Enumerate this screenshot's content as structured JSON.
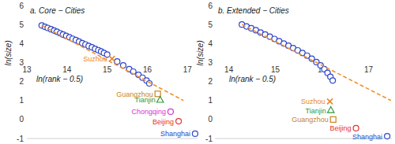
{
  "chart_data": [
    {
      "type": "scatter",
      "title": "a. Core − Cities",
      "x_label": "ln(rank − 0.5)",
      "y_label": "ln(size)",
      "xlim": [
        13,
        17.25
      ],
      "ylim": [
        -1,
        6
      ],
      "xticks": [
        13,
        14,
        15,
        16,
        17
      ],
      "yticks": [
        -1,
        0,
        1,
        2,
        3,
        4,
        5,
        6
      ],
      "series": [
        {
          "color": "#2f45c8",
          "marker": "circle",
          "x": [
            13.37,
            13.45,
            13.52,
            13.6,
            13.68,
            13.75,
            13.83,
            13.9,
            13.98,
            14.06,
            14.14,
            14.22,
            14.3,
            14.38,
            14.46,
            14.54,
            14.62,
            14.7,
            14.78,
            14.85,
            14.92,
            15.0,
            15.25,
            15.4,
            15.55,
            15.65,
            15.78,
            15.88,
            15.98,
            16.05
          ],
          "values": [
            4.95,
            4.88,
            4.82,
            4.75,
            4.68,
            4.62,
            4.54,
            4.47,
            4.4,
            4.33,
            4.25,
            4.18,
            4.1,
            4.02,
            3.95,
            3.87,
            3.8,
            3.72,
            3.65,
            3.58,
            3.5,
            3.42,
            3.05,
            2.85,
            2.65,
            2.52,
            2.35,
            2.2,
            2.05,
            1.9
          ]
        },
        {
          "type": "line",
          "line_style": "dashed",
          "color": "#f0922b",
          "x": [
            13.37,
            16.9
          ],
          "values": [
            4.95,
            1.0
          ]
        },
        {
          "name": "Suzhou",
          "color": "#e8872a",
          "marker": "x",
          "x": [
            15.12
          ],
          "values": [
            3.2
          ]
        },
        {
          "name": "Guangzhou",
          "color": "#c8861e",
          "marker": "square",
          "x": [
            16.26
          ],
          "values": [
            1.35
          ]
        },
        {
          "name": "Tianjin",
          "color": "#2e9a3a",
          "marker": "triangle",
          "x": [
            16.32
          ],
          "values": [
            1.03
          ]
        },
        {
          "name": "Chongqing",
          "color": "#d633d6",
          "marker": "circle",
          "x": [
            16.58
          ],
          "values": [
            0.41
          ]
        },
        {
          "name": "Beijing",
          "color": "#e8312f",
          "marker": "circle",
          "x": [
            16.78
          ],
          "values": [
            -0.09
          ]
        },
        {
          "name": "Shanghai",
          "color": "#2f45c8",
          "marker": "circle",
          "x": [
            17.19
          ],
          "values": [
            -0.75
          ]
        }
      ]
    },
    {
      "type": "scatter",
      "title": "b. Extended − Cities",
      "x_label": "ln(rank − 0.5)",
      "y_label": "ln(size)",
      "xlim": [
        13.7,
        17.5
      ],
      "ylim": [
        -1,
        6
      ],
      "xticks": [
        14,
        15,
        16,
        17
      ],
      "yticks": [
        -1,
        0,
        1,
        2,
        3,
        4,
        5,
        6
      ],
      "series": [
        {
          "color": "#2f45c8",
          "marker": "circle",
          "x": [
            14.28,
            14.38,
            14.48,
            14.58,
            14.68,
            14.78,
            14.88,
            14.98,
            15.08,
            15.18,
            15.28,
            15.38,
            15.48,
            15.58,
            15.68,
            15.78,
            15.88,
            15.97,
            16.05,
            16.12,
            16.18,
            16.23
          ],
          "values": [
            5.0,
            4.9,
            4.8,
            4.7,
            4.58,
            4.47,
            4.36,
            4.24,
            4.12,
            4.0,
            3.88,
            3.76,
            3.64,
            3.5,
            3.36,
            3.2,
            3.02,
            2.85,
            2.65,
            2.45,
            2.25,
            2.05
          ]
        },
        {
          "type": "line",
          "line_style": "dashed",
          "color": "#f0922b",
          "x": [
            14.28,
            17.48
          ],
          "values": [
            5.0,
            1.0
          ]
        },
        {
          "name": "Suzhou",
          "color": "#e8872a",
          "marker": "x",
          "x": [
            16.17
          ],
          "values": [
            0.95
          ]
        },
        {
          "name": "Tianjin",
          "color": "#2e9a3a",
          "marker": "triangle",
          "x": [
            16.19
          ],
          "values": [
            0.49
          ]
        },
        {
          "name": "Guangzhou",
          "color": "#c8861e",
          "marker": "square",
          "x": [
            16.24
          ],
          "values": [
            0.0
          ]
        },
        {
          "name": "Beijing",
          "color": "#e8312f",
          "marker": "circle",
          "x": [
            16.73
          ],
          "values": [
            -0.46
          ]
        },
        {
          "name": "Shanghai",
          "color": "#2f45c8",
          "marker": "circle",
          "x": [
            17.4
          ],
          "values": [
            -0.88
          ]
        }
      ]
    }
  ]
}
